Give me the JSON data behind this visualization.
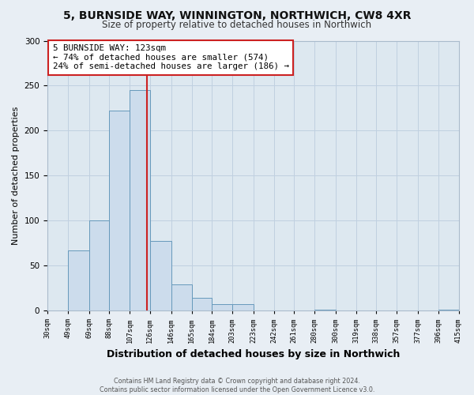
{
  "title_line1": "5, BURNSIDE WAY, WINNINGTON, NORTHWICH, CW8 4XR",
  "title_line2": "Size of property relative to detached houses in Northwich",
  "xlabel": "Distribution of detached houses by size in Northwich",
  "ylabel": "Number of detached properties",
  "bar_edges": [
    30,
    49,
    69,
    88,
    107,
    126,
    146,
    165,
    184,
    203,
    223,
    242,
    261,
    280,
    300,
    319,
    338,
    357,
    377,
    396,
    415
  ],
  "bar_heights": [
    0,
    67,
    100,
    222,
    245,
    77,
    29,
    14,
    7,
    7,
    0,
    0,
    0,
    1,
    0,
    0,
    0,
    0,
    0,
    1
  ],
  "bar_color": "#ccdcec",
  "bar_edge_color": "#6699bb",
  "vline_x": 123,
  "vline_color": "#cc2222",
  "annotation_title": "5 BURNSIDE WAY: 123sqm",
  "annotation_line2": "← 74% of detached houses are smaller (574)",
  "annotation_line3": "24% of semi-detached houses are larger (186) →",
  "annotation_box_edge_color": "#cc2222",
  "ylim": [
    0,
    300
  ],
  "yticks": [
    0,
    50,
    100,
    150,
    200,
    250,
    300
  ],
  "xtick_labels": [
    "30sqm",
    "49sqm",
    "69sqm",
    "88sqm",
    "107sqm",
    "126sqm",
    "146sqm",
    "165sqm",
    "184sqm",
    "203sqm",
    "223sqm",
    "242sqm",
    "261sqm",
    "280sqm",
    "300sqm",
    "319sqm",
    "338sqm",
    "357sqm",
    "377sqm",
    "396sqm",
    "415sqm"
  ],
  "footer_line1": "Contains HM Land Registry data © Crown copyright and database right 2024.",
  "footer_line2": "Contains public sector information licensed under the Open Government Licence v3.0.",
  "background_color": "#e8eef4",
  "plot_background_color": "#dde8f0",
  "grid_color": "#c0d0e0"
}
